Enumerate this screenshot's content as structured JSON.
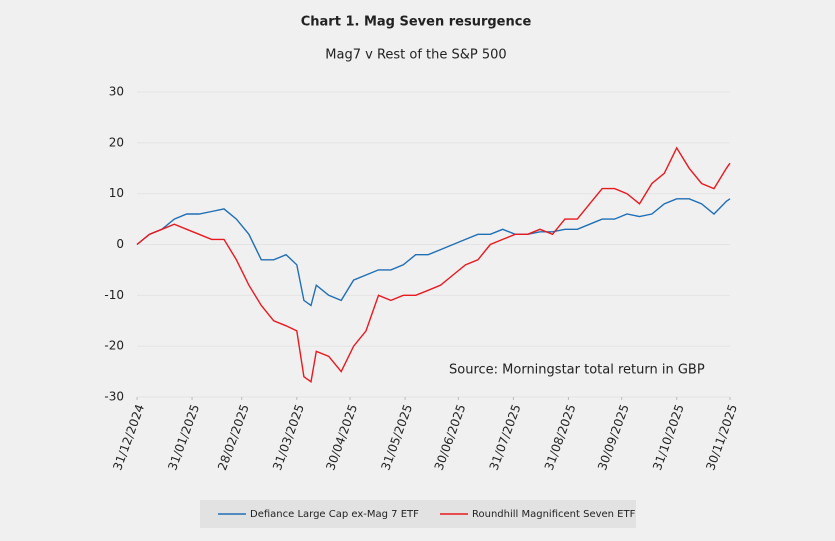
{
  "chart_data": {
    "type": "line",
    "title": "Chart 1. Mag Seven resurgence",
    "subtitle": "Mag7 v Rest of the S&P 500",
    "annotation": "Source: Morningstar total return in GBP",
    "x": [
      "31/12/2024",
      "07/01/2025",
      "14/01/2025",
      "21/01/2025",
      "28/01/2025",
      "04/02/2025",
      "11/02/2025",
      "18/02/2025",
      "25/02/2025",
      "04/03/2025",
      "11/03/2025",
      "18/03/2025",
      "25/03/2025",
      "31/03/2025",
      "04/04/2025",
      "08/04/2025",
      "11/04/2025",
      "18/04/2025",
      "25/04/2025",
      "02/05/2025",
      "09/05/2025",
      "16/05/2025",
      "23/05/2025",
      "30/05/2025",
      "06/06/2025",
      "13/06/2025",
      "20/06/2025",
      "27/06/2025",
      "04/07/2025",
      "11/07/2025",
      "18/07/2025",
      "25/07/2025",
      "01/08/2025",
      "08/08/2025",
      "15/08/2025",
      "22/08/2025",
      "29/08/2025",
      "05/09/2025",
      "12/09/2025",
      "19/09/2025",
      "26/09/2025",
      "03/10/2025",
      "10/10/2025",
      "17/10/2025",
      "24/10/2025",
      "31/10/2025",
      "07/11/2025",
      "14/11/2025",
      "21/11/2025",
      "28/11/2025",
      "30/11/2025"
    ],
    "series": [
      {
        "name": "Defiance Large Cap ex-Mag 7 ETF",
        "color": "#1f6fb5",
        "values": [
          0,
          2,
          3,
          5,
          6,
          6,
          6.5,
          7,
          5,
          2,
          -3,
          -3,
          -2,
          -4,
          -11,
          -12,
          -8,
          -10,
          -11,
          -7,
          -6,
          -5,
          -5,
          -4,
          -2,
          -2,
          -1,
          0,
          1,
          2,
          2,
          3,
          2,
          2,
          2.5,
          2.5,
          3,
          3,
          4,
          5,
          5,
          6,
          5.5,
          6,
          8,
          9,
          9,
          8,
          6,
          8.5,
          9
        ]
      },
      {
        "name": "Roundhill Magnificent Seven ETF",
        "color": "#e8191f",
        "values": [
          0,
          2,
          3,
          4,
          3,
          2,
          1,
          1,
          -3,
          -8,
          -12,
          -15,
          -16,
          -17,
          -26,
          -27,
          -21,
          -22,
          -25,
          -20,
          -17,
          -10,
          -11,
          -10,
          -10,
          -9,
          -8,
          -6,
          -4,
          -3,
          0,
          1,
          2,
          2,
          3,
          2,
          5,
          5,
          8,
          11,
          11,
          10,
          8,
          12,
          14,
          19,
          15,
          12,
          11,
          15,
          16
        ]
      }
    ],
    "xlim": [
      "31/12/2024",
      "30/11/2025"
    ],
    "xticks": [
      "31/12/2024",
      "31/01/2025",
      "28/02/2025",
      "31/03/2025",
      "30/04/2025",
      "31/05/2025",
      "30/06/2025",
      "31/07/2025",
      "31/08/2025",
      "30/09/2025",
      "31/10/2025",
      "30/11/2025"
    ],
    "ylim": [
      -30,
      30
    ],
    "yticks": [
      -30,
      -20,
      -10,
      0,
      10,
      20,
      30
    ],
    "grid": true,
    "legend": "bottom"
  }
}
